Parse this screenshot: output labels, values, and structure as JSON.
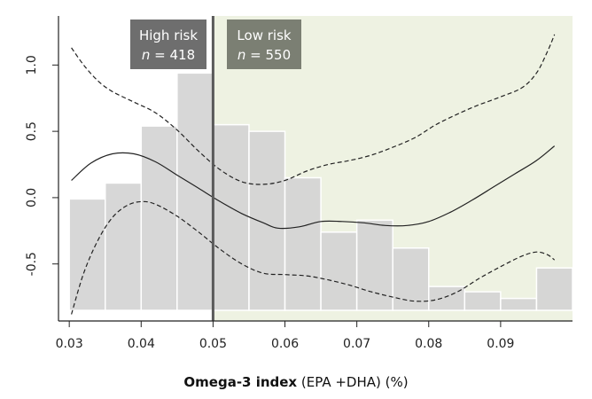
{
  "chart_data": {
    "type": "histogram with spline curves",
    "xlabel_bold": "Omega-3 index",
    "xlabel_rest": "(EPA +DHA) (%)",
    "xlim": [
      0.0285,
      0.1
    ],
    "ylim": [
      -0.93,
      1.37
    ],
    "x_ticks": [
      {
        "value": 0.03,
        "label": "0.03"
      },
      {
        "value": 0.04,
        "label": "0.04"
      },
      {
        "value": 0.05,
        "label": "0.05"
      },
      {
        "value": 0.06,
        "label": "0.06"
      },
      {
        "value": 0.07,
        "label": "0.07"
      },
      {
        "value": 0.08,
        "label": "0.08"
      },
      {
        "value": 0.09,
        "label": "0.09"
      }
    ],
    "y_ticks": [
      {
        "value": 1.0,
        "label": "1.0"
      },
      {
        "value": 0.5,
        "label": "0.5"
      },
      {
        "value": 0.0,
        "label": "0.0"
      },
      {
        "value": -0.5,
        "label": "-0.5"
      }
    ],
    "threshold": 0.05,
    "high_risk": {
      "label": "High risk",
      "n_prefix": "n",
      "n_value": "= 418"
    },
    "low_risk": {
      "label": "Low risk",
      "n_prefix": "n",
      "n_value": "= 550"
    },
    "colors": {
      "bar": "#d4d4d4",
      "low_region": "#eef2e2",
      "high_box": "#6e6e6e",
      "low_box": "#7b7f73",
      "threshold_line": "#5a5a5a"
    },
    "histogram": {
      "bin_width": 0.005,
      "bins": [
        {
          "start": 0.03,
          "top": -0.01
        },
        {
          "start": 0.035,
          "top": 0.11
        },
        {
          "start": 0.04,
          "top": 0.54
        },
        {
          "start": 0.045,
          "top": 0.94
        },
        {
          "start": 0.05,
          "top": 0.55
        },
        {
          "start": 0.055,
          "top": 0.5
        },
        {
          "start": 0.06,
          "top": 0.15
        },
        {
          "start": 0.065,
          "top": -0.26
        },
        {
          "start": 0.07,
          "top": -0.17
        },
        {
          "start": 0.075,
          "top": -0.38
        },
        {
          "start": 0.08,
          "top": -0.67
        },
        {
          "start": 0.085,
          "top": -0.71
        },
        {
          "start": 0.09,
          "top": -0.76
        },
        {
          "start": 0.095,
          "top": -0.53
        }
      ]
    },
    "series": [
      {
        "name": "estimate",
        "style": "solid",
        "points": [
          [
            0.0303,
            0.13
          ],
          [
            0.033,
            0.26
          ],
          [
            0.036,
            0.33
          ],
          [
            0.039,
            0.33
          ],
          [
            0.042,
            0.27
          ],
          [
            0.045,
            0.17
          ],
          [
            0.048,
            0.07
          ],
          [
            0.051,
            -0.03
          ],
          [
            0.054,
            -0.12
          ],
          [
            0.057,
            -0.19
          ],
          [
            0.059,
            -0.23
          ],
          [
            0.062,
            -0.22
          ],
          [
            0.065,
            -0.18
          ],
          [
            0.068,
            -0.18
          ],
          [
            0.071,
            -0.19
          ],
          [
            0.074,
            -0.21
          ],
          [
            0.077,
            -0.21
          ],
          [
            0.08,
            -0.18
          ],
          [
            0.083,
            -0.11
          ],
          [
            0.086,
            -0.02
          ],
          [
            0.089,
            0.08
          ],
          [
            0.092,
            0.18
          ],
          [
            0.095,
            0.28
          ],
          [
            0.0975,
            0.39
          ]
        ]
      },
      {
        "name": "upper CI",
        "style": "dashed",
        "points": [
          [
            0.0303,
            1.13
          ],
          [
            0.032,
            1.0
          ],
          [
            0.034,
            0.88
          ],
          [
            0.036,
            0.8
          ],
          [
            0.039,
            0.72
          ],
          [
            0.042,
            0.64
          ],
          [
            0.045,
            0.51
          ],
          [
            0.048,
            0.35
          ],
          [
            0.051,
            0.21
          ],
          [
            0.054,
            0.12
          ],
          [
            0.057,
            0.1
          ],
          [
            0.06,
            0.13
          ],
          [
            0.063,
            0.2
          ],
          [
            0.066,
            0.25
          ],
          [
            0.069,
            0.28
          ],
          [
            0.072,
            0.32
          ],
          [
            0.075,
            0.38
          ],
          [
            0.078,
            0.45
          ],
          [
            0.081,
            0.55
          ],
          [
            0.084,
            0.63
          ],
          [
            0.087,
            0.7
          ],
          [
            0.09,
            0.76
          ],
          [
            0.093,
            0.83
          ],
          [
            0.095,
            0.94
          ],
          [
            0.0965,
            1.1
          ],
          [
            0.0975,
            1.23
          ]
        ]
      },
      {
        "name": "lower CI",
        "style": "dashed",
        "points": [
          [
            0.0303,
            -0.88
          ],
          [
            0.032,
            -0.57
          ],
          [
            0.034,
            -0.32
          ],
          [
            0.036,
            -0.15
          ],
          [
            0.038,
            -0.06
          ],
          [
            0.04,
            -0.03
          ],
          [
            0.042,
            -0.05
          ],
          [
            0.045,
            -0.14
          ],
          [
            0.048,
            -0.26
          ],
          [
            0.051,
            -0.39
          ],
          [
            0.054,
            -0.5
          ],
          [
            0.057,
            -0.57
          ],
          [
            0.06,
            -0.58
          ],
          [
            0.063,
            -0.59
          ],
          [
            0.066,
            -0.62
          ],
          [
            0.069,
            -0.66
          ],
          [
            0.072,
            -0.71
          ],
          [
            0.075,
            -0.75
          ],
          [
            0.078,
            -0.78
          ],
          [
            0.081,
            -0.77
          ],
          [
            0.084,
            -0.71
          ],
          [
            0.087,
            -0.61
          ],
          [
            0.09,
            -0.52
          ],
          [
            0.093,
            -0.44
          ],
          [
            0.095,
            -0.41
          ],
          [
            0.0965,
            -0.43
          ],
          [
            0.0975,
            -0.47
          ]
        ]
      }
    ]
  }
}
